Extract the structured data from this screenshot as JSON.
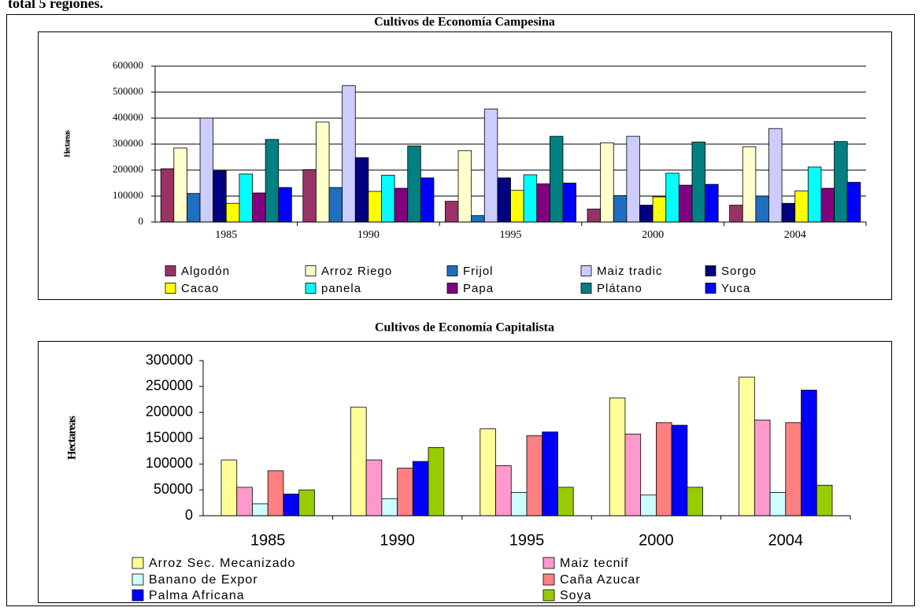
{
  "heading": "total 5 regiones.",
  "chart_data": [
    {
      "type": "bar",
      "title": "Cultivos de Economía Campesina",
      "y_label": "Hectareas",
      "categories": [
        "1985",
        "1990",
        "1995",
        "2000",
        "2004"
      ],
      "ylim": [
        0,
        600000
      ],
      "yticks": [
        0,
        100000,
        200000,
        300000,
        400000,
        500000,
        600000
      ],
      "grid": true,
      "series": [
        {
          "name": "Algodón",
          "color": "#993366",
          "values": [
            205000,
            202000,
            80000,
            50000,
            65000
          ]
        },
        {
          "name": "Arroz Riego",
          "color": "#FFFFCC",
          "values": [
            285000,
            385000,
            275000,
            305000,
            290000
          ]
        },
        {
          "name": "Frijol",
          "color": "#1F6FC0",
          "values": [
            110000,
            133000,
            25000,
            102000,
            100000
          ]
        },
        {
          "name": "Maiz tradic",
          "color": "#CCCCFF",
          "values": [
            400000,
            525000,
            435000,
            330000,
            360000
          ]
        },
        {
          "name": "Sorgo",
          "color": "#000080",
          "values": [
            197000,
            248000,
            170000,
            65000,
            72000
          ]
        },
        {
          "name": "Cacao",
          "color": "#FFFF00",
          "values": [
            72000,
            118000,
            122000,
            97000,
            120000
          ]
        },
        {
          "name": "panela",
          "color": "#00FFFF",
          "values": [
            185000,
            180000,
            182000,
            188000,
            212000
          ]
        },
        {
          "name": "Papa",
          "color": "#800080",
          "values": [
            112000,
            130000,
            147000,
            142000,
            130000
          ]
        },
        {
          "name": "Plátano",
          "color": "#008080",
          "values": [
            318000,
            293000,
            330000,
            308000,
            310000
          ]
        },
        {
          "name": "Yuca",
          "color": "#0000FF",
          "values": [
            133000,
            170000,
            150000,
            145000,
            153000
          ]
        }
      ]
    },
    {
      "type": "bar",
      "title": "Cultivos de Economía Capitalista",
      "y_label": "Hectareas",
      "categories": [
        "1985",
        "1990",
        "1995",
        "2000",
        "2004"
      ],
      "ylim": [
        0,
        300000
      ],
      "yticks": [
        0,
        50000,
        100000,
        150000,
        200000,
        250000,
        300000
      ],
      "grid": false,
      "series": [
        {
          "name": "Arroz Sec. Mecanizado",
          "color": "#FFFF99",
          "values": [
            108000,
            210000,
            168000,
            228000,
            268000
          ]
        },
        {
          "name": "Maiz tecnif",
          "color": "#FF99CC",
          "values": [
            55000,
            108000,
            97000,
            158000,
            185000
          ]
        },
        {
          "name": "Banano de Expor",
          "color": "#CCFFFF",
          "values": [
            23000,
            33000,
            45000,
            40000,
            45000
          ]
        },
        {
          "name": "Caña Azucar",
          "color": "#FF8080",
          "values": [
            87000,
            92000,
            155000,
            180000,
            180000
          ]
        },
        {
          "name": "Palma Africana",
          "color": "#0000FF",
          "values": [
            42000,
            105000,
            162000,
            175000,
            243000
          ]
        },
        {
          "name": "Soya",
          "color": "#99CC00",
          "values": [
            50000,
            132000,
            55000,
            55000,
            59000
          ]
        }
      ]
    }
  ]
}
